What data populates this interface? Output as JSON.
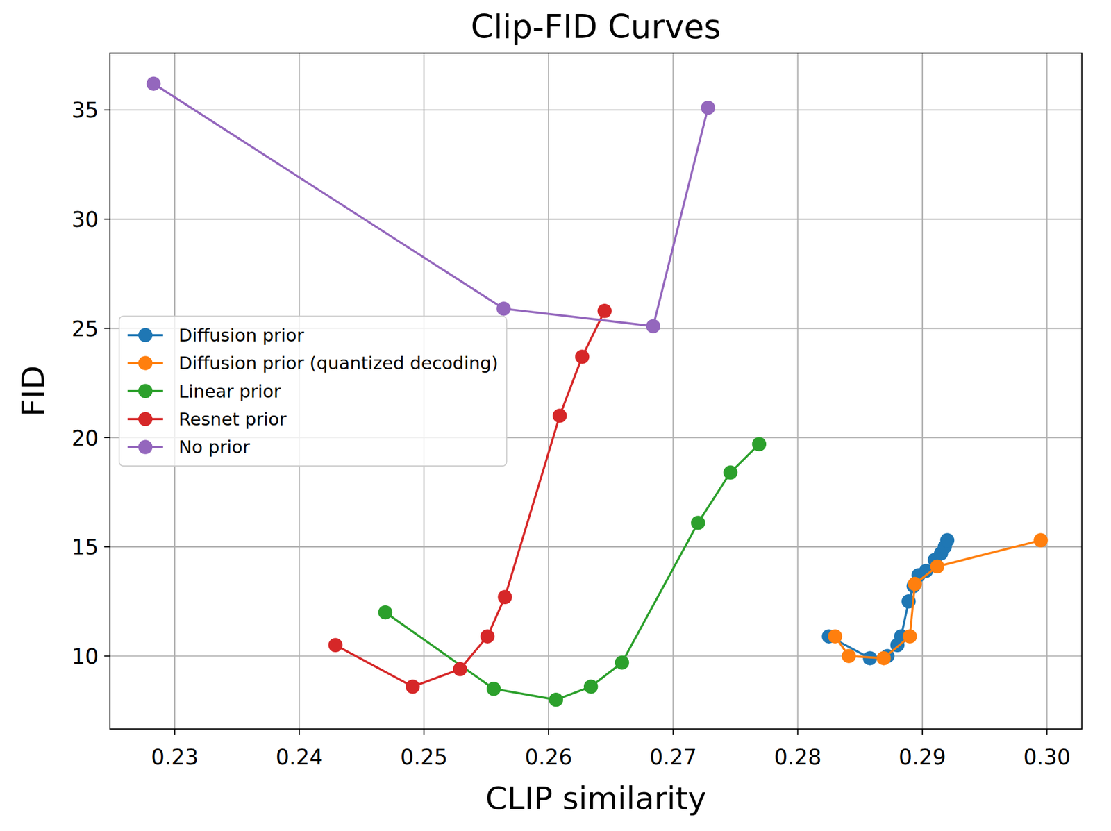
{
  "chart_data": {
    "type": "line",
    "title": "Clip-FID Curves",
    "x_label": "CLIP similarity",
    "y_label": "FID",
    "xlim": [
      0.2248,
      0.3028
    ],
    "ylim": [
      6.66,
      37.6
    ],
    "xticks": [
      0.23,
      0.24,
      0.25,
      0.26,
      0.27,
      0.28,
      0.29,
      {
        "value": 0.3,
        "label": "0.30"
      }
    ],
    "yticks": [
      10,
      15,
      20,
      25,
      30,
      35
    ],
    "grid": true,
    "legend": "center left",
    "marker": "circle",
    "series": [
      {
        "name": "Diffusion prior",
        "color": "#1f77b4",
        "x": [
          0.2825,
          0.2858,
          0.2872,
          0.288,
          0.2883,
          0.2889,
          0.2893,
          0.2897,
          0.2903,
          0.291,
          0.2915,
          0.2918,
          0.292
        ],
        "values": [
          10.9,
          9.9,
          10.0,
          10.5,
          10.9,
          12.5,
          13.2,
          13.7,
          13.9,
          14.4,
          14.7,
          15.0,
          15.3
        ]
      },
      {
        "name": "Diffusion prior (quantized decoding)",
        "color": "#ff7f0e",
        "x": [
          0.283,
          0.2841,
          0.2869,
          0.289,
          0.2894,
          0.2912,
          0.2995
        ],
        "values": [
          10.9,
          10.0,
          9.9,
          10.9,
          13.3,
          14.1,
          15.3
        ]
      },
      {
        "name": "Linear prior",
        "color": "#2ca02c",
        "x": [
          0.2469,
          0.2556,
          0.2606,
          0.2634,
          0.2659,
          0.272,
          0.2746,
          0.2769
        ],
        "values": [
          12.0,
          8.5,
          8.0,
          8.6,
          9.7,
          16.1,
          18.4,
          19.7
        ]
      },
      {
        "name": "Resnet prior",
        "color": "#d62728",
        "x": [
          0.2429,
          0.2491,
          0.2529,
          0.2551,
          0.2565,
          0.2609,
          0.2627,
          0.2645
        ],
        "values": [
          10.5,
          8.6,
          9.4,
          10.9,
          12.7,
          21.0,
          23.7,
          25.8
        ]
      },
      {
        "name": "No prior",
        "color": "#9467bd",
        "x": [
          0.2283,
          0.2564,
          0.2684,
          0.2728
        ],
        "values": [
          36.2,
          25.9,
          25.1,
          35.1
        ]
      }
    ]
  }
}
